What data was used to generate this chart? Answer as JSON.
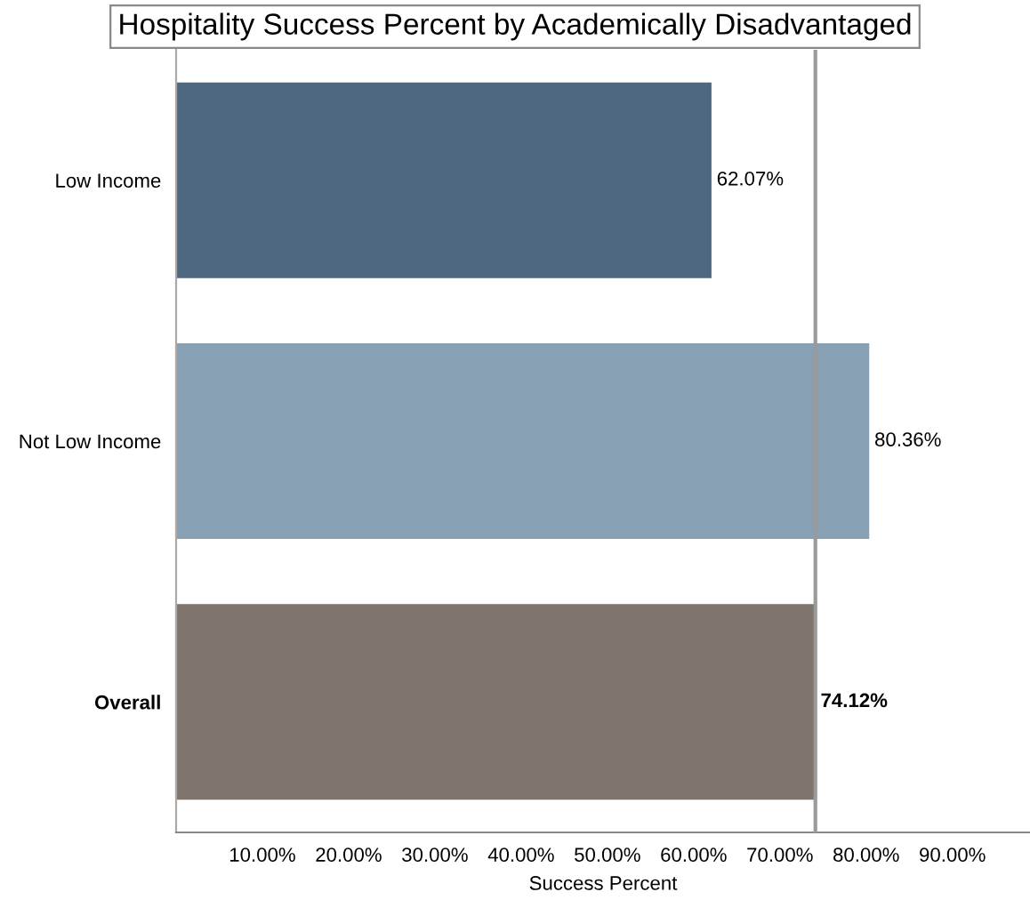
{
  "chart_data": {
    "type": "bar",
    "orientation": "horizontal",
    "title": "Hospitality Success Percent by Academically Disadvantaged",
    "xlabel": "Success Percent",
    "categories": [
      "Low Income",
      "Not Low Income",
      "Overall"
    ],
    "values": [
      62.07,
      80.36,
      74.12
    ],
    "colors": [
      "#4f6882",
      "#87a0b4",
      "#7f756c"
    ],
    "value_labels": [
      "62.07%",
      "80.36%",
      "74.12%"
    ],
    "xlim": [
      0,
      99
    ],
    "xticks": [
      {
        "value": 10,
        "label": "10.00%"
      },
      {
        "value": 20,
        "label": "20.00%"
      },
      {
        "value": 30,
        "label": "30.00%"
      },
      {
        "value": 40,
        "label": "40.00%"
      },
      {
        "value": 50,
        "label": "50.00%"
      },
      {
        "value": 60,
        "label": "60.00%"
      },
      {
        "value": 70,
        "label": "70.00%"
      },
      {
        "value": 80,
        "label": "80.00%"
      },
      {
        "value": 90,
        "label": "90.00%"
      }
    ],
    "ref_lines": [
      {
        "axis": "x",
        "value": 74.12,
        "color": "#9a9a9a"
      }
    ],
    "grid": false
  }
}
